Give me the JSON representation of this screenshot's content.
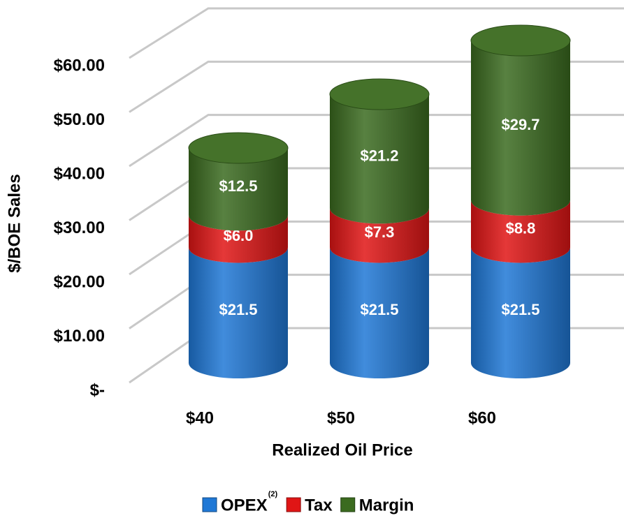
{
  "chart_data": {
    "type": "bar3d_cylinder_stacked",
    "y_axis_label": "$/BOE Sales",
    "x_axis_label": "Realized Oil Price",
    "categories": [
      "$40",
      "$50",
      "$60"
    ],
    "series": [
      {
        "name": "OPEX",
        "name_note": "(2)",
        "color": "#1f78d6",
        "values": [
          21.5,
          21.5,
          21.5
        ],
        "value_labels": [
          "$21.5",
          "$21.5",
          "$21.5"
        ]
      },
      {
        "name": "Tax",
        "color": "#e01515",
        "values": [
          6.0,
          7.3,
          8.8
        ],
        "value_labels": [
          "$6.0",
          "$7.3",
          "$8.8"
        ]
      },
      {
        "name": "Margin",
        "color": "#3b6b1f",
        "values": [
          12.5,
          21.2,
          29.7
        ],
        "value_labels": [
          "$12.5",
          "$21.2",
          "$29.7"
        ]
      }
    ],
    "ylim": [
      0,
      60
    ],
    "yticks": [
      {
        "value": 0,
        "label": "$-"
      },
      {
        "value": 10,
        "label": "$10.00"
      },
      {
        "value": 20,
        "label": "$20.00"
      },
      {
        "value": 30,
        "label": "$30.00"
      },
      {
        "value": 40,
        "label": "$40.00"
      },
      {
        "value": 50,
        "label": "$50.00"
      },
      {
        "value": 60,
        "label": "$60.00"
      }
    ],
    "grid": true,
    "legend": "bottom"
  }
}
